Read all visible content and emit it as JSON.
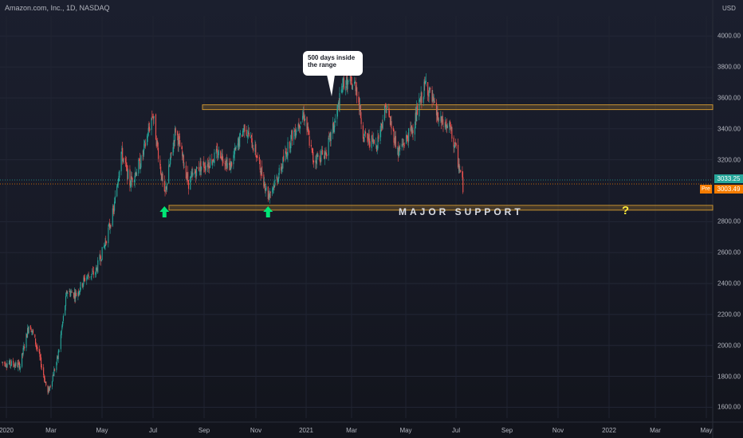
{
  "header": {
    "symbol_title": "Amazon.com, Inc., 1D, NASDAQ",
    "currency": "USD"
  },
  "price_axis": {
    "ticks": [
      "4000.00",
      "3800.00",
      "3600.00",
      "3400.00",
      "3200.00",
      "2800.00",
      "2600.00",
      "2400.00",
      "2200.00",
      "2000.00",
      "1800.00",
      "1600.00"
    ],
    "tick_values": [
      4000,
      3800,
      3600,
      3400,
      3200,
      2800,
      2600,
      2400,
      2200,
      2000,
      1800,
      1600
    ]
  },
  "time_axis": {
    "labels": [
      "2020",
      "Mar",
      "May",
      "Jul",
      "Sep",
      "Nov",
      "2021",
      "Mar",
      "May",
      "Jul",
      "Sep",
      "Nov",
      "2022",
      "Mar",
      "May"
    ]
  },
  "price_tags": {
    "last": "3033.25",
    "pre_label": "Pre",
    "pre_value": "3003.49"
  },
  "annotations": {
    "callout_line1": "500 days inside",
    "callout_line2": "the range",
    "support_label": "MAJOR SUPPORT",
    "question_mark": "?"
  },
  "colors": {
    "up_candle": "#26a69a",
    "down_candle": "#ef5350",
    "range_band": "#c69030",
    "support_arrow": "#00e676",
    "question": "#ffeb3b",
    "last_price_tag": "#26a69a",
    "pre_price_tag": "#f57c00"
  },
  "chart_data": {
    "type": "candlestick",
    "title": "Amazon.com, Inc., 1D, NASDAQ",
    "ylim": [
      1530,
      4130
    ],
    "levels": {
      "range_top": 3540,
      "range_bottom": 2890
    },
    "support_arrows": [
      "2020-09-21",
      "2021-03-08"
    ],
    "price_path": [
      {
        "date": "2020-01-02",
        "close": 1890
      },
      {
        "date": "2020-01-31",
        "close": 1870
      },
      {
        "date": "2020-02-15",
        "close": 2150
      },
      {
        "date": "2020-03-01",
        "close": 1950
      },
      {
        "date": "2020-03-16",
        "close": 1690
      },
      {
        "date": "2020-04-01",
        "close": 1920
      },
      {
        "date": "2020-04-16",
        "close": 2350
      },
      {
        "date": "2020-05-01",
        "close": 2330
      },
      {
        "date": "2020-05-16",
        "close": 2440
      },
      {
        "date": "2020-06-01",
        "close": 2470
      },
      {
        "date": "2020-06-16",
        "close": 2650
      },
      {
        "date": "2020-07-01",
        "close": 2880
      },
      {
        "date": "2020-07-13",
        "close": 3250
      },
      {
        "date": "2020-07-27",
        "close": 3050
      },
      {
        "date": "2020-08-15",
        "close": 3200
      },
      {
        "date": "2020-09-02",
        "close": 3500
      },
      {
        "date": "2020-09-21",
        "close": 2960
      },
      {
        "date": "2020-10-09",
        "close": 3400
      },
      {
        "date": "2020-10-30",
        "close": 3050
      },
      {
        "date": "2020-11-15",
        "close": 3150
      },
      {
        "date": "2020-12-01",
        "close": 3180
      },
      {
        "date": "2020-12-20",
        "close": 3250
      },
      {
        "date": "2021-01-05",
        "close": 3150
      },
      {
        "date": "2021-01-29",
        "close": 3420
      },
      {
        "date": "2021-02-15",
        "close": 3260
      },
      {
        "date": "2021-03-08",
        "close": 2970
      },
      {
        "date": "2021-03-25",
        "close": 3100
      },
      {
        "date": "2021-04-15",
        "close": 3350
      },
      {
        "date": "2021-05-05",
        "close": 3500
      },
      {
        "date": "2021-05-20",
        "close": 3200
      },
      {
        "date": "2021-06-10",
        "close": 3250
      },
      {
        "date": "2021-06-25",
        "close": 3450
      },
      {
        "date": "2021-07-08",
        "close": 3700
      },
      {
        "date": "2021-07-29",
        "close": 3680
      },
      {
        "date": "2021-08-10",
        "close": 3350
      },
      {
        "date": "2021-08-31",
        "close": 3300
      },
      {
        "date": "2021-09-15",
        "close": 3550
      },
      {
        "date": "2021-10-05",
        "close": 3250
      },
      {
        "date": "2021-10-28",
        "close": 3400
      },
      {
        "date": "2021-11-19",
        "close": 3700
      },
      {
        "date": "2021-12-10",
        "close": 3450
      },
      {
        "date": "2021-12-28",
        "close": 3400
      },
      {
        "date": "2022-01-07",
        "close": 3250
      },
      {
        "date": "2022-01-18",
        "close": 3030
      }
    ]
  }
}
